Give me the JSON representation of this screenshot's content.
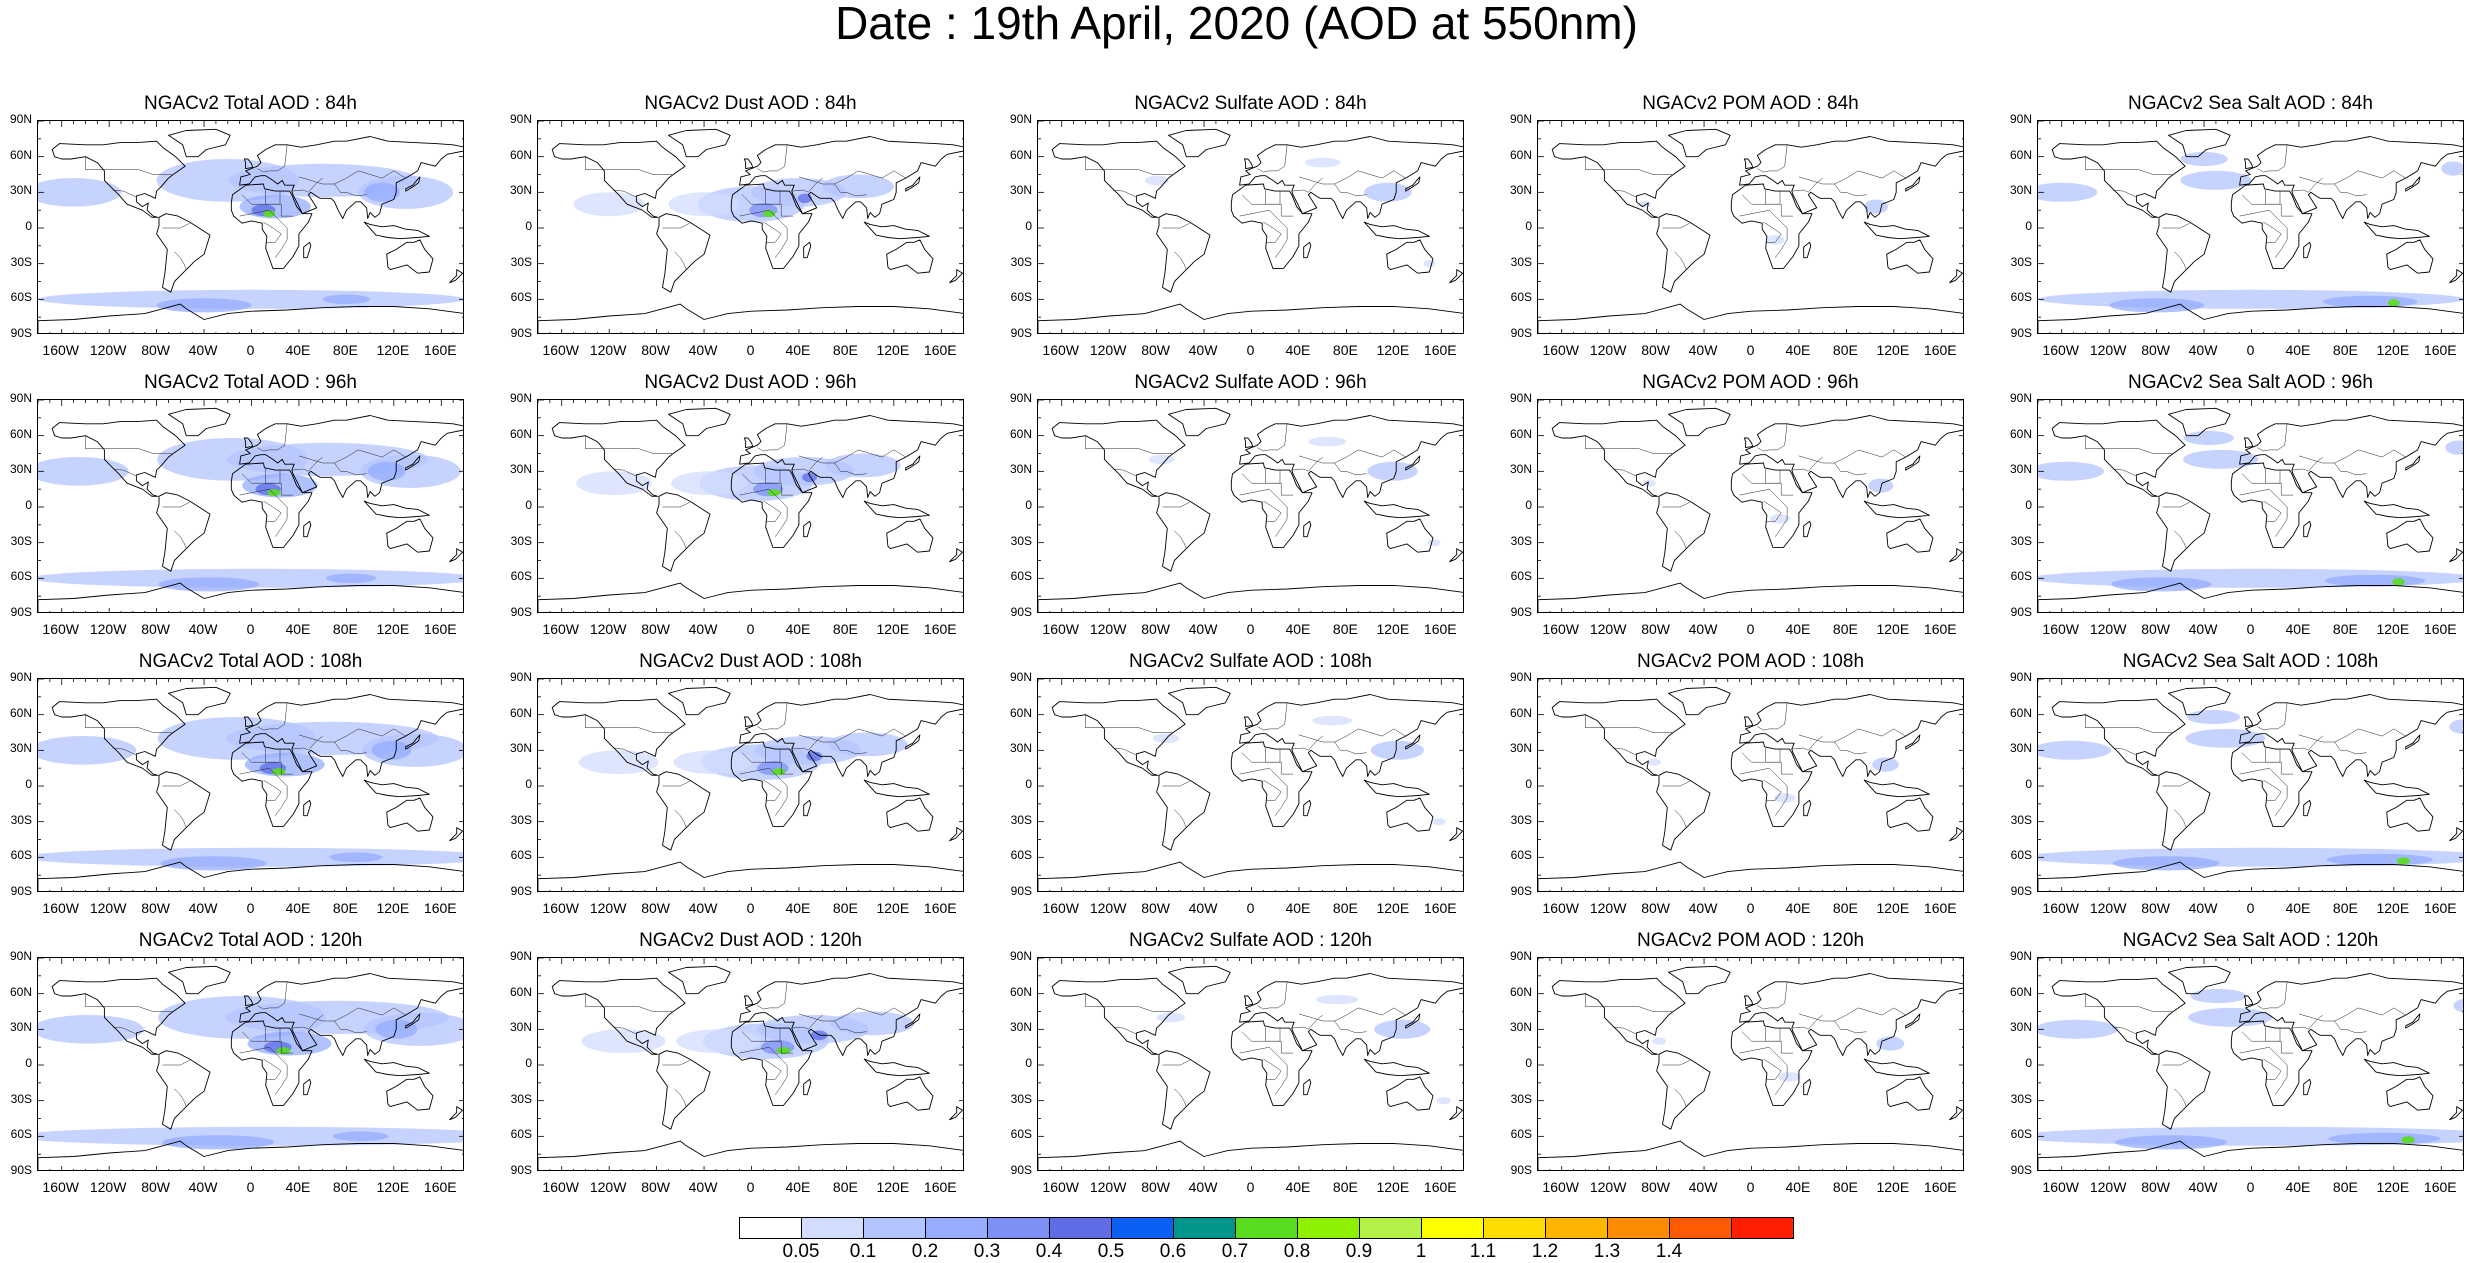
{
  "title": "Date : 19th April, 2020 (AOD at 550nm)",
  "lat_ticks": [
    "90N",
    "60N",
    "30N",
    "0",
    "30S",
    "60S",
    "90S"
  ],
  "lon_ticks": [
    "160W",
    "120W",
    "80W",
    "40W",
    "0",
    "40E",
    "80E",
    "120E",
    "160E"
  ],
  "species": [
    {
      "key": "total",
      "label": "NGACv2 Total AOD"
    },
    {
      "key": "dust",
      "label": "NGACv2 Dust AOD"
    },
    {
      "key": "sulfate",
      "label": "NGACv2 Sulfate AOD"
    },
    {
      "key": "pom",
      "label": "NGACv2 POM AOD"
    },
    {
      "key": "seasalt",
      "label": "NGACv2 Sea Salt AOD"
    }
  ],
  "panels": [
    [
      "NGACv2 Total AOD : 84h",
      "NGACv2 Dust AOD : 84h",
      "NGACv2 Sulfate AOD : 84h",
      "NGACv2 POM AOD : 84h",
      "NGACv2 Sea Salt AOD : 84h"
    ],
    [
      "NGACv2 Total AOD : 96h",
      "NGACv2 Dust AOD : 96h",
      "NGACv2 Sulfate AOD : 96h",
      "NGACv2 POM AOD : 96h",
      "NGACv2 Sea Salt AOD : 96h"
    ],
    [
      "NGACv2 Total AOD : 108h",
      "NGACv2 Dust AOD : 108h",
      "NGACv2 Sulfate AOD : 108h",
      "NGACv2 POM AOD : 108h",
      "NGACv2 Sea Salt AOD : 108h"
    ],
    [
      "NGACv2 Total AOD : 120h",
      "NGACv2 Dust AOD : 120h",
      "NGACv2 Sulfate AOD : 120h",
      "NGACv2 POM AOD : 120h",
      "NGACv2 Sea Salt  AOD : 120h"
    ]
  ],
  "colorbar": {
    "colors": [
      "#ffffff",
      "#d2dcff",
      "#b4c4ff",
      "#96acff",
      "#7c90f5",
      "#5e6ce6",
      "#0a5ff5",
      "#00968c",
      "#5adc1e",
      "#8cf000",
      "#b4f046",
      "#ffff00",
      "#ffdc00",
      "#ffb400",
      "#ff8c00",
      "#ff5a00",
      "#ff1e00"
    ],
    "labels": [
      "0.05",
      "0.1",
      "0.2",
      "0.3",
      "0.4",
      "0.5",
      "0.6",
      "0.7",
      "0.8",
      "0.9",
      "1",
      "1.1",
      "1.2",
      "1.3",
      "1.4"
    ]
  }
}
